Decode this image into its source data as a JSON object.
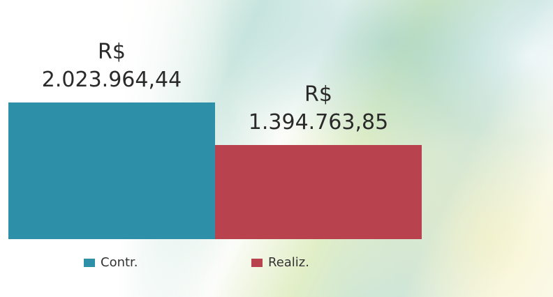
{
  "chart_data": {
    "type": "bar",
    "series": [
      {
        "name": "Contr.",
        "color": "#2e8fa8",
        "values": [
          2023964.44
        ],
        "value_labels": [
          "R$\n2.023.964,44"
        ]
      },
      {
        "name": "Realiz.",
        "color": "#b8434f",
        "values": [
          1394763.85
        ],
        "value_labels": [
          "R$\n1.394.763,85"
        ]
      }
    ]
  }
}
